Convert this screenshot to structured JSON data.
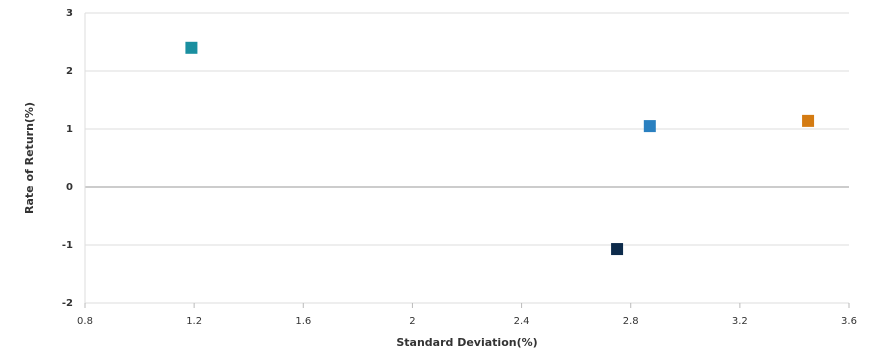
{
  "chart_data": {
    "type": "scatter",
    "x_label": "Standard Deviation(%)",
    "y_label": "Rate of Return(%)",
    "x": [
      1.19,
      2.87,
      3.45,
      2.75
    ],
    "values": [
      2.4,
      1.05,
      1.14,
      -1.07
    ],
    "colors": [
      "#1a8fa0",
      "#2a80c0",
      "#d47b12",
      "#0d2b4b"
    ],
    "xlim": [
      0.8,
      3.6
    ],
    "xticks": [
      0.8,
      1.2,
      1.6,
      2,
      2.4,
      2.8,
      3.2,
      3.6
    ],
    "ylim": [
      -2,
      3
    ],
    "yticks": [
      -2,
      -1,
      0,
      1,
      2,
      3
    ],
    "grid": true
  }
}
